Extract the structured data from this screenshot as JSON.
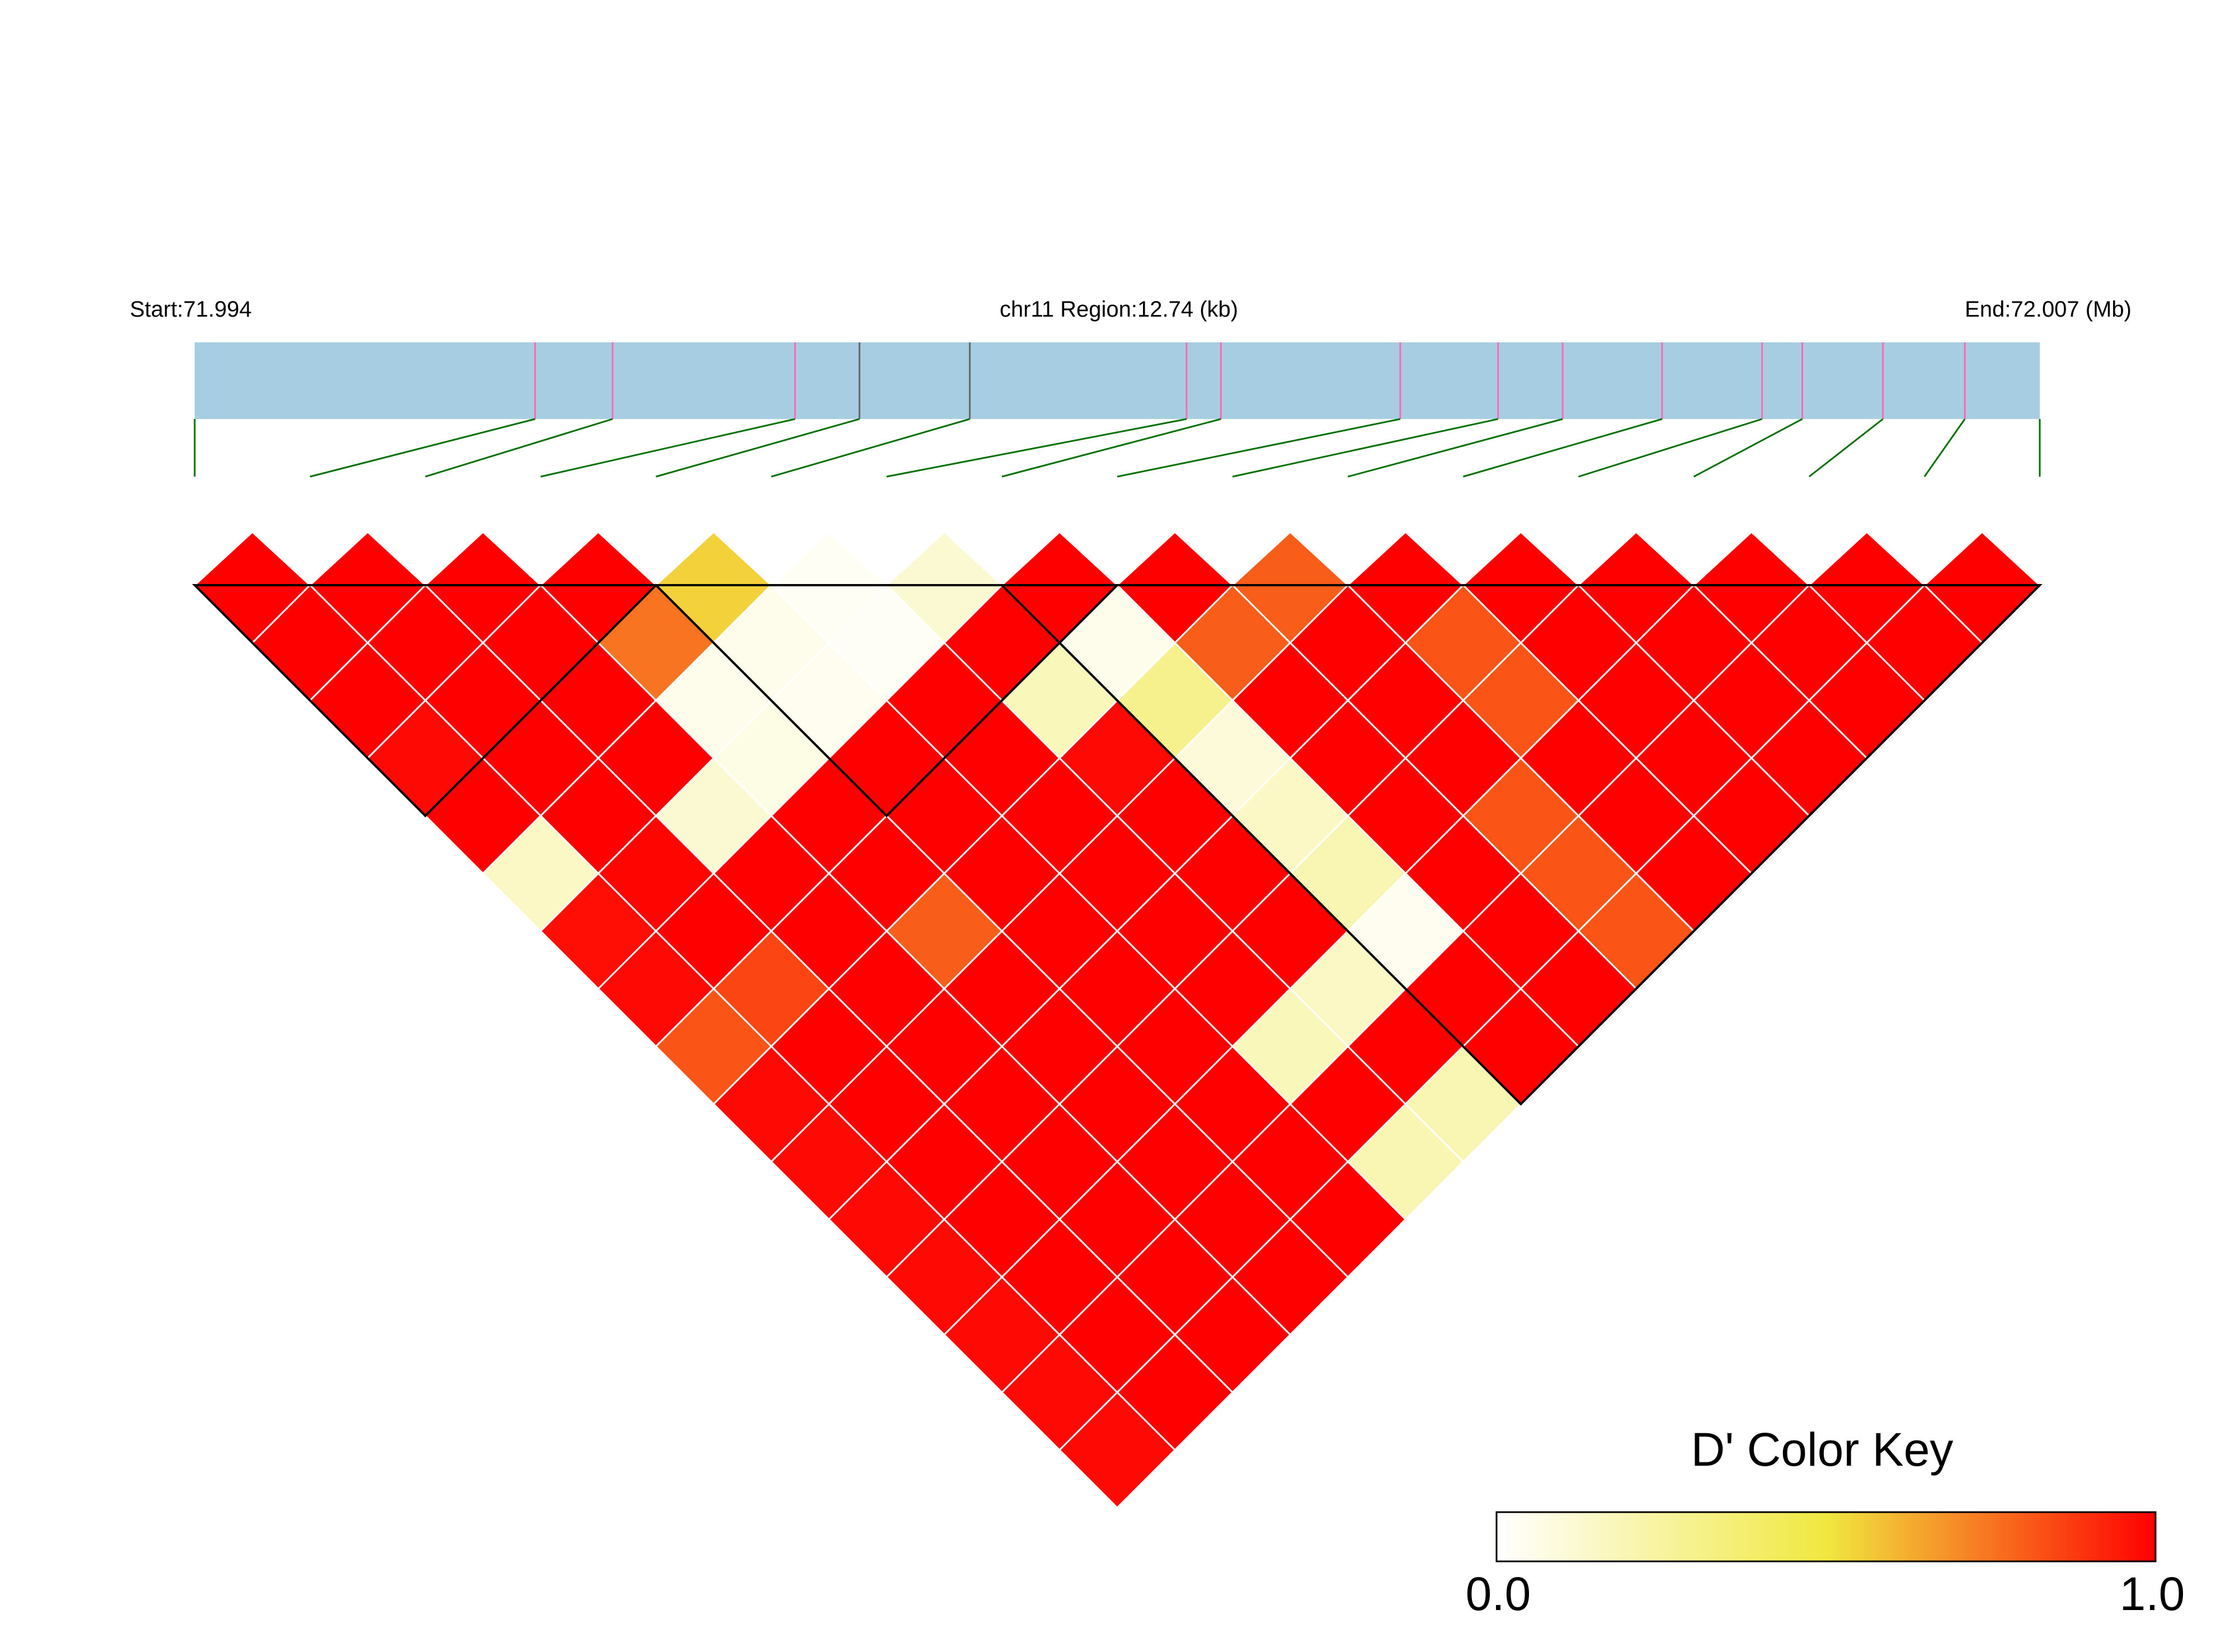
{
  "header": {
    "start_label": "Start:71.994",
    "region_label": "chr11 Region:12.74 (kb)",
    "end_label": "End:72.007 (Mb)"
  },
  "colors": {
    "track_fill": "#a7cde2",
    "snp_tick": "#ff69b4",
    "connector": "#007000",
    "block_border": "#000000",
    "cell_grid": "#ffffff"
  },
  "chart_data": {
    "type": "heatmap",
    "description_metric": "D'",
    "region": {
      "chromosome": "chr11",
      "start_mb": 71.994,
      "end_mb": 72.007,
      "length_kb": 12.74
    },
    "snp_count": 17,
    "snp_positions_rel": [
      0,
      0.1845,
      0.2265,
      0.3254,
      0.3603,
      0.4201,
      0.5376,
      0.5562,
      0.6534,
      0.7064,
      0.7414,
      0.7953,
      0.8495,
      0.8713,
      0.915,
      0.9594,
      1.0
    ],
    "snp_tick_color_index": [
      0,
      1,
      1,
      1,
      2,
      2,
      1,
      1,
      1,
      1,
      1,
      1,
      1,
      1,
      1,
      1,
      0
    ],
    "dprime_rows_by_distance": [
      [
        1.0,
        1.0,
        1.0,
        1.0,
        0.55,
        0.03,
        0.12,
        1.0,
        1.0,
        0.8,
        1.0,
        1.0,
        1.0,
        1.0,
        1.0,
        1.0
      ],
      [
        1.0,
        1.0,
        1.0,
        0.75,
        0.05,
        0.02,
        1.0,
        0.05,
        0.8,
        1.0,
        0.82,
        1.0,
        1.0,
        1.0,
        1.0
      ],
      [
        1.0,
        1.0,
        1.0,
        0.05,
        0.04,
        1.0,
        0.18,
        0.3,
        1.0,
        1.0,
        0.82,
        1.0,
        1.0,
        1.0
      ],
      [
        0.98,
        1.0,
        1.0,
        0.07,
        1.0,
        1.0,
        0.98,
        0.1,
        1.0,
        1.0,
        1.0,
        1.0,
        1.0
      ],
      [
        1.0,
        1.0,
        0.12,
        1.0,
        1.0,
        1.0,
        1.0,
        0.15,
        1.0,
        0.82,
        1.0,
        1.0
      ],
      [
        0.15,
        0.99,
        1.0,
        1.0,
        1.0,
        1.0,
        1.0,
        0.2,
        1.0,
        0.82,
        1.0
      ],
      [
        0.97,
        1.0,
        1.0,
        0.8,
        1.0,
        1.0,
        1.0,
        0.04,
        1.0,
        0.82
      ],
      [
        0.98,
        0.85,
        1.0,
        1.0,
        1.0,
        1.0,
        0.15,
        1.0,
        1.0
      ],
      [
        0.82,
        1.0,
        1.0,
        1.0,
        1.0,
        0.18,
        1.0,
        1.0
      ],
      [
        0.98,
        1.0,
        1.0,
        1.0,
        1.0,
        1.0,
        0.2
      ],
      [
        0.98,
        1.0,
        1.0,
        1.0,
        1.0,
        0.2
      ],
      [
        0.98,
        1.0,
        1.0,
        1.0,
        1.0
      ],
      [
        0.98,
        1.0,
        1.0,
        1.0
      ],
      [
        0.98,
        1.0,
        1.0
      ],
      [
        0.98,
        1.0
      ],
      [
        0.98
      ]
    ],
    "ld_blocks": [
      [
        0,
        4
      ],
      [
        4,
        8
      ],
      [
        7,
        16
      ]
    ],
    "color_key": {
      "title": "D' Color Key",
      "min_label": "0.0",
      "max_label": "1.0",
      "stops": [
        "#ffffff",
        "#f0e840",
        "#ff0000"
      ]
    }
  }
}
